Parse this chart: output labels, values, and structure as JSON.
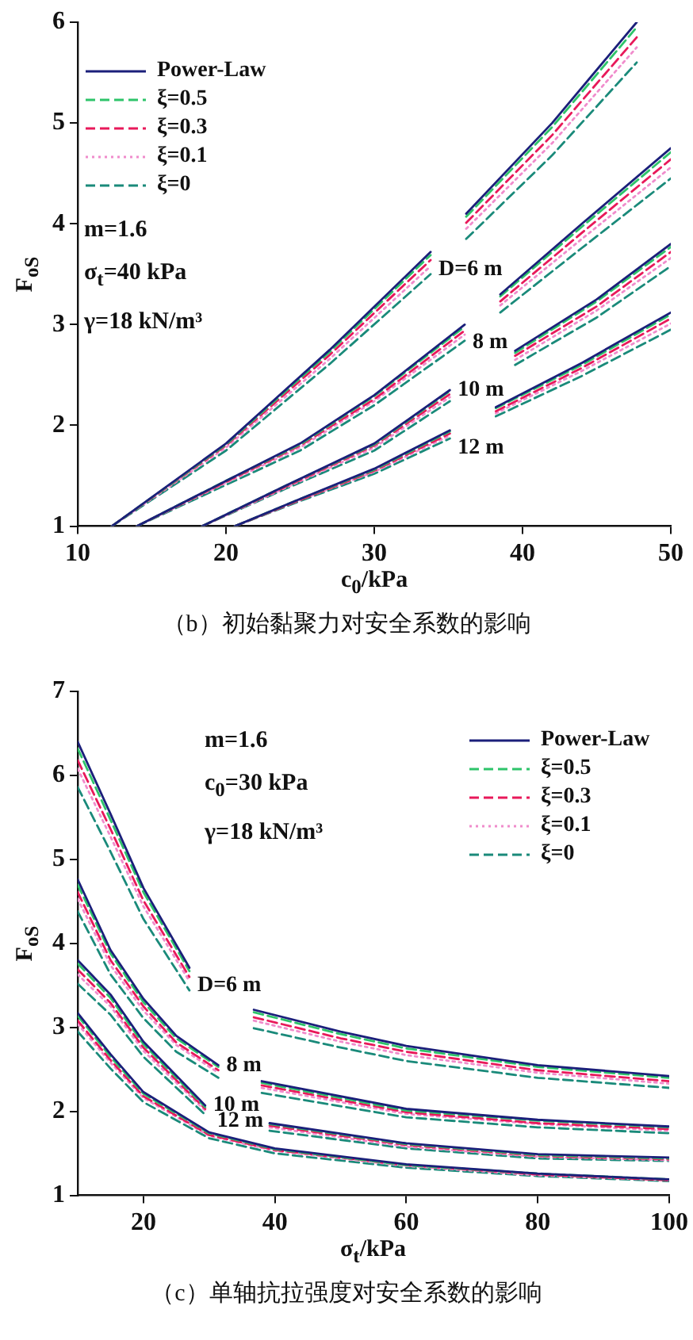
{
  "chart_data": [
    {
      "type": "line",
      "title": "（b）初始黏聚力对安全系数的影响",
      "xlabel": "c$_{0}$/kPa",
      "ylabel": "F$_{oS}$",
      "xlim": [
        10,
        50
      ],
      "xticks": [
        10,
        20,
        30,
        40,
        50
      ],
      "ylim": [
        1,
        6
      ],
      "yticks": [
        1,
        2,
        3,
        4,
        5,
        6
      ],
      "legend": "top left",
      "marker": "none",
      "annotations": [
        "m=1.6",
        "σ$_{t}$=40 kPa",
        "γ=18 kN/m³",
        {
          "text": "D=6 m",
          "x": 33.8,
          "y": 3.72
        },
        {
          "text": "8 m",
          "x": 36.1,
          "y": 3.0
        },
        {
          "text": "10 m",
          "x": 35.1,
          "y": 2.35
        },
        {
          "text": "12 m",
          "x": 35.1,
          "y": 1.95
        }
      ],
      "series": [
        {
          "name": "Power-Law",
          "color": "#1b1f7a",
          "line_style": "solid",
          "x": [
            12.3,
            20,
            27,
            33.8,
            35,
            36.2,
            42,
            47.7
          ],
          "values": [
            1,
            1.82,
            2.75,
            3.72,
            null,
            4.1,
            5.0,
            6
          ]
        },
        {
          "name": "ξ=0.5",
          "color": "#2ec46a",
          "line_style": "dashed",
          "x": [
            12.3,
            20,
            27,
            33.8,
            35,
            36.2,
            42,
            47.7
          ],
          "values": [
            1,
            1.81,
            2.73,
            3.69,
            null,
            4.07,
            4.96,
            5.95
          ]
        },
        {
          "name": "ξ=0.3",
          "color": "#e8195a",
          "line_style": "dashed",
          "x": [
            12.3,
            20,
            27,
            33.8,
            35,
            36.2,
            42,
            47.7
          ],
          "values": [
            1,
            1.8,
            2.7,
            3.64,
            null,
            4.01,
            4.88,
            5.85
          ]
        },
        {
          "name": "ξ=0.1",
          "color": "#f08ccc",
          "line_style": "dotted",
          "x": [
            12.3,
            20,
            27,
            33.8,
            35,
            36.2,
            42,
            47.7
          ],
          "values": [
            1,
            1.78,
            2.66,
            3.58,
            null,
            3.95,
            4.8,
            5.75
          ]
        },
        {
          "name": "ξ=0",
          "color": "#1a8a7a",
          "line_style": "dashed",
          "x": [
            12.3,
            20,
            27,
            33.8,
            35,
            36.2,
            42,
            47.7
          ],
          "values": [
            1,
            1.75,
            2.61,
            3.5,
            null,
            3.85,
            4.68,
            5.6
          ]
        },
        {
          "color": "#1b1f7a",
          "line_style": "solid",
          "x": [
            14,
            20,
            25,
            30,
            36.1,
            37.3,
            38.5,
            44,
            50
          ],
          "values": [
            1,
            1.45,
            1.82,
            2.3,
            3.0,
            null,
            3.3,
            4.0,
            4.75
          ]
        },
        {
          "color": "#2ec46a",
          "line_style": "dashed",
          "x": [
            14,
            20,
            25,
            30,
            36.1,
            37.3,
            38.5,
            44,
            50
          ],
          "values": [
            1,
            1.45,
            1.81,
            2.29,
            2.98,
            null,
            3.28,
            3.97,
            4.71
          ]
        },
        {
          "color": "#e8195a",
          "line_style": "dashed",
          "x": [
            14,
            20,
            25,
            30,
            36.1,
            37.3,
            38.5,
            44,
            50
          ],
          "values": [
            1,
            1.44,
            1.8,
            2.26,
            2.94,
            null,
            3.23,
            3.91,
            4.64
          ]
        },
        {
          "color": "#f08ccc",
          "line_style": "dotted",
          "x": [
            14,
            20,
            25,
            30,
            36.1,
            37.3,
            38.5,
            44,
            50
          ],
          "values": [
            1,
            1.43,
            1.78,
            2.24,
            2.9,
            null,
            3.19,
            3.85,
            4.56
          ]
        },
        {
          "color": "#1a8a7a",
          "line_style": "dashed",
          "x": [
            14,
            20,
            25,
            30,
            36.1,
            37.3,
            38.5,
            44,
            50
          ],
          "values": [
            1,
            1.41,
            1.75,
            2.2,
            2.84,
            null,
            3.12,
            3.76,
            4.45
          ]
        },
        {
          "color": "#1b1f7a",
          "line_style": "solid",
          "x": [
            18.4,
            24,
            30,
            35.1,
            37.3,
            39.5,
            45,
            50
          ],
          "values": [
            1,
            1.4,
            1.82,
            2.35,
            null,
            2.74,
            3.25,
            3.8
          ]
        },
        {
          "color": "#2ec46a",
          "line_style": "dashed",
          "x": [
            18.4,
            24,
            30,
            35.1,
            37.3,
            39.5,
            45,
            50
          ],
          "values": [
            1,
            1.4,
            1.81,
            2.34,
            null,
            2.72,
            3.23,
            3.77
          ]
        },
        {
          "color": "#e8195a",
          "line_style": "dashed",
          "x": [
            18.4,
            24,
            30,
            35.1,
            37.3,
            39.5,
            45,
            50
          ],
          "values": [
            1,
            1.39,
            1.8,
            2.31,
            null,
            2.69,
            3.18,
            3.72
          ]
        },
        {
          "color": "#f08ccc",
          "line_style": "dotted",
          "x": [
            18.4,
            24,
            30,
            35.1,
            37.3,
            39.5,
            45,
            50
          ],
          "values": [
            1,
            1.38,
            1.78,
            2.28,
            null,
            2.65,
            3.14,
            3.66
          ]
        },
        {
          "color": "#1a8a7a",
          "line_style": "dashed",
          "x": [
            18.4,
            24,
            30,
            35.1,
            37.3,
            39.5,
            45,
            50
          ],
          "values": [
            1,
            1.37,
            1.75,
            2.24,
            null,
            2.6,
            3.07,
            3.58
          ]
        },
        {
          "color": "#1b1f7a",
          "line_style": "solid",
          "x": [
            20.6,
            25,
            30,
            35.1,
            36.6,
            38.2,
            44,
            50
          ],
          "values": [
            1,
            1.27,
            1.57,
            1.95,
            null,
            2.18,
            2.62,
            3.12
          ]
        },
        {
          "color": "#2ec46a",
          "line_style": "dashed",
          "x": [
            20.6,
            25,
            30,
            35.1,
            36.6,
            38.2,
            44,
            50
          ],
          "values": [
            1,
            1.27,
            1.56,
            1.94,
            null,
            2.17,
            2.6,
            3.1
          ]
        },
        {
          "color": "#e8195a",
          "line_style": "dashed",
          "x": [
            20.6,
            25,
            30,
            35.1,
            36.6,
            38.2,
            44,
            50
          ],
          "values": [
            1,
            1.26,
            1.55,
            1.92,
            null,
            2.14,
            2.57,
            3.06
          ]
        },
        {
          "color": "#f08ccc",
          "line_style": "dotted",
          "x": [
            20.6,
            25,
            30,
            35.1,
            36.6,
            38.2,
            44,
            50
          ],
          "values": [
            1,
            1.26,
            1.54,
            1.9,
            null,
            2.12,
            2.54,
            3.01
          ]
        },
        {
          "color": "#1a8a7a",
          "line_style": "dashed",
          "x": [
            20.6,
            25,
            30,
            35.1,
            36.6,
            38.2,
            44,
            50
          ],
          "values": [
            1,
            1.25,
            1.52,
            1.87,
            null,
            2.09,
            2.49,
            2.95
          ]
        }
      ]
    },
    {
      "type": "line",
      "title": "（c）单轴抗拉强度对安全系数的影响",
      "xlabel": "σ$_{t}$/kPa",
      "ylabel": "F$_{oS}$",
      "xlim": [
        10,
        100
      ],
      "xticks": [
        20,
        40,
        60,
        80,
        100
      ],
      "ylim": [
        1,
        7
      ],
      "yticks": [
        1,
        2,
        3,
        4,
        5,
        6,
        7
      ],
      "legend": "top right",
      "marker": "none",
      "annotations": [
        "m=1.6",
        "c$_{0}$=30 kPa",
        "γ=18 kN/m³",
        {
          "text": "D=6 m",
          "x": 27,
          "y": 3.71
        },
        {
          "text": "8 m",
          "x": 31.4,
          "y": 2.55
        },
        {
          "text": "10 m",
          "x": 29.4,
          "y": 2.07
        },
        {
          "text": "12 m",
          "x": 30,
          "y": 1.68
        }
      ],
      "series": [
        {
          "name": "Power-Law",
          "color": "#1b1f7a",
          "line_style": "solid",
          "x": [
            10,
            15,
            20,
            27,
            32,
            36.8,
            50,
            60,
            80,
            100
          ],
          "values": [
            6.4,
            5.54,
            4.66,
            3.71,
            null,
            3.21,
            2.95,
            2.78,
            2.55,
            2.42
          ]
        },
        {
          "name": "ξ=0.5",
          "color": "#2ec46a",
          "line_style": "dashed",
          "x": [
            10,
            15,
            20,
            27,
            32,
            36.8,
            50,
            60,
            80,
            100
          ],
          "values": [
            6.32,
            5.47,
            4.61,
            3.67,
            null,
            3.18,
            2.92,
            2.75,
            2.53,
            2.4
          ]
        },
        {
          "name": "ξ=0.3",
          "color": "#e8195a",
          "line_style": "dashed",
          "x": [
            10,
            15,
            20,
            27,
            32,
            36.8,
            50,
            60,
            80,
            100
          ],
          "values": [
            6.18,
            5.36,
            4.51,
            3.6,
            null,
            3.12,
            2.87,
            2.71,
            2.49,
            2.36
          ]
        },
        {
          "name": "ξ=0.1",
          "color": "#f08ccc",
          "line_style": "dotted",
          "x": [
            10,
            15,
            20,
            27,
            32,
            36.8,
            50,
            60,
            80,
            100
          ],
          "values": [
            6.08,
            5.27,
            4.44,
            3.55,
            null,
            3.08,
            2.83,
            2.67,
            2.46,
            2.33
          ]
        },
        {
          "name": "ξ=0",
          "color": "#1a8a7a",
          "line_style": "dashed",
          "x": [
            10,
            15,
            20,
            27,
            32,
            36.8,
            50,
            60,
            80,
            100
          ],
          "values": [
            5.86,
            5.09,
            4.29,
            3.44,
            null,
            2.99,
            2.76,
            2.6,
            2.4,
            2.28
          ]
        },
        {
          "color": "#1b1f7a",
          "line_style": "solid",
          "x": [
            10,
            15,
            20,
            25,
            31.4,
            34.7,
            38,
            60,
            80,
            100
          ],
          "values": [
            4.76,
            3.92,
            3.34,
            2.9,
            2.55,
            null,
            2.36,
            2.03,
            1.9,
            1.82
          ]
        },
        {
          "color": "#2ec46a",
          "line_style": "dashed",
          "x": [
            10,
            15,
            20,
            25,
            31.4,
            34.7,
            38,
            60,
            80,
            100
          ],
          "values": [
            4.7,
            3.88,
            3.3,
            2.87,
            2.53,
            null,
            2.34,
            2.01,
            1.89,
            1.81
          ]
        },
        {
          "color": "#e8195a",
          "line_style": "dashed",
          "x": [
            10,
            15,
            20,
            25,
            31.4,
            34.7,
            38,
            60,
            80,
            100
          ],
          "values": [
            4.61,
            3.8,
            3.25,
            2.82,
            2.49,
            null,
            2.31,
            1.99,
            1.86,
            1.79
          ]
        },
        {
          "color": "#f08ccc",
          "line_style": "dotted",
          "x": [
            10,
            15,
            20,
            25,
            31.4,
            34.7,
            38,
            60,
            80,
            100
          ],
          "values": [
            4.53,
            3.74,
            3.2,
            2.79,
            2.46,
            null,
            2.28,
            1.97,
            1.85,
            1.77
          ]
        },
        {
          "color": "#1a8a7a",
          "line_style": "dashed",
          "x": [
            10,
            15,
            20,
            25,
            31.4,
            34.7,
            38,
            60,
            80,
            100
          ],
          "values": [
            4.38,
            3.63,
            3.11,
            2.71,
            2.4,
            null,
            2.22,
            1.93,
            1.81,
            1.74
          ]
        },
        {
          "color": "#1b1f7a",
          "line_style": "solid",
          "x": [
            10,
            15,
            20,
            29.4,
            34.3,
            39.2,
            60,
            80,
            100
          ],
          "values": [
            3.8,
            3.39,
            2.83,
            2.07,
            null,
            1.86,
            1.62,
            1.49,
            1.45
          ]
        },
        {
          "color": "#2ec46a",
          "line_style": "dashed",
          "x": [
            10,
            15,
            20,
            29.4,
            34.3,
            39.2,
            60,
            80,
            100
          ],
          "values": [
            3.76,
            3.35,
            2.8,
            2.05,
            null,
            1.85,
            1.61,
            1.48,
            1.44
          ]
        },
        {
          "color": "#e8195a",
          "line_style": "dashed",
          "x": [
            10,
            15,
            20,
            29.4,
            34.3,
            39.2,
            60,
            80,
            100
          ],
          "values": [
            3.69,
            3.29,
            2.76,
            2.03,
            null,
            1.83,
            1.6,
            1.47,
            1.43
          ]
        },
        {
          "color": "#f08ccc",
          "line_style": "dotted",
          "x": [
            10,
            15,
            20,
            29.4,
            34.3,
            39.2,
            60,
            80,
            100
          ],
          "values": [
            3.63,
            3.25,
            2.72,
            2.01,
            null,
            1.81,
            1.58,
            1.46,
            1.42
          ]
        },
        {
          "color": "#1a8a7a",
          "line_style": "dashed",
          "x": [
            10,
            15,
            20,
            29.4,
            34.3,
            39.2,
            60,
            80,
            100
          ],
          "values": [
            3.52,
            3.15,
            2.65,
            1.96,
            null,
            1.77,
            1.56,
            1.44,
            1.41
          ]
        },
        {
          "color": "#1b1f7a",
          "line_style": "solid",
          "x": [
            10,
            15,
            20,
            30,
            40,
            60,
            80,
            100
          ],
          "values": [
            3.17,
            2.68,
            2.23,
            1.75,
            1.56,
            1.37,
            1.26,
            1.19
          ]
        },
        {
          "color": "#2ec46a",
          "line_style": "dashed",
          "x": [
            10,
            15,
            20,
            30,
            40,
            60,
            80,
            100
          ],
          "values": [
            3.14,
            2.65,
            2.21,
            1.74,
            1.55,
            1.36,
            1.26,
            1.19
          ]
        },
        {
          "color": "#e8195a",
          "line_style": "dashed",
          "x": [
            10,
            15,
            20,
            30,
            40,
            60,
            80,
            100
          ],
          "values": [
            3.08,
            2.61,
            2.18,
            1.72,
            1.54,
            1.36,
            1.25,
            1.18
          ]
        },
        {
          "color": "#f08ccc",
          "line_style": "dotted",
          "x": [
            10,
            15,
            20,
            30,
            40,
            60,
            80,
            100
          ],
          "values": [
            3.04,
            2.58,
            2.16,
            1.71,
            1.53,
            1.35,
            1.24,
            1.18
          ]
        },
        {
          "color": "#1a8a7a",
          "line_style": "dashed",
          "x": [
            10,
            15,
            20,
            30,
            40,
            60,
            80,
            100
          ],
          "values": [
            2.95,
            2.51,
            2.11,
            1.68,
            1.5,
            1.33,
            1.23,
            1.17
          ]
        }
      ]
    }
  ]
}
